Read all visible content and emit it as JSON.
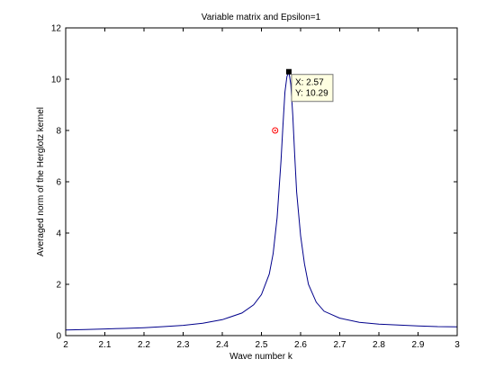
{
  "chart_data": {
    "type": "line",
    "title": "Variable matrix and Epsilon=1",
    "xlabel": "Wave number k",
    "ylabel": "Averaged norm of the Herglotz kernel",
    "xlim": [
      2,
      3
    ],
    "ylim": [
      0,
      12
    ],
    "xticks": [
      2,
      2.1,
      2.2,
      2.3,
      2.4,
      2.5,
      2.6,
      2.7,
      2.8,
      2.9,
      3
    ],
    "yticks": [
      0,
      2,
      4,
      6,
      8,
      10,
      12
    ],
    "xtick_labels": [
      "2",
      "2.1",
      "2.2",
      "2.3",
      "2.4",
      "2.5",
      "2.6",
      "2.7",
      "2.8",
      "2.9",
      "3"
    ],
    "ytick_labels": [
      "0",
      "2",
      "4",
      "6",
      "8",
      "10",
      "12"
    ],
    "grid": false,
    "series": [
      {
        "color": "#00008b",
        "x": [
          2.0,
          2.05,
          2.1,
          2.15,
          2.2,
          2.25,
          2.3,
          2.35,
          2.4,
          2.45,
          2.48,
          2.5,
          2.52,
          2.53,
          2.54,
          2.55,
          2.555,
          2.56,
          2.565,
          2.57,
          2.575,
          2.58,
          2.585,
          2.59,
          2.6,
          2.61,
          2.62,
          2.64,
          2.66,
          2.7,
          2.75,
          2.8,
          2.85,
          2.9,
          2.95,
          3.0
        ],
        "y": [
          0.22,
          0.24,
          0.26,
          0.28,
          0.31,
          0.35,
          0.4,
          0.48,
          0.62,
          0.88,
          1.2,
          1.6,
          2.4,
          3.2,
          4.6,
          6.8,
          8.2,
          9.5,
          10.1,
          10.29,
          9.8,
          8.6,
          7.0,
          5.6,
          3.9,
          2.8,
          2.0,
          1.3,
          0.95,
          0.68,
          0.52,
          0.45,
          0.41,
          0.38,
          0.35,
          0.34
        ]
      }
    ],
    "markers": [
      {
        "x": 2.57,
        "y": 10.29,
        "shape": "square",
        "color": "#000000"
      },
      {
        "x": 2.535,
        "y": 8.0,
        "shape": "circle-dot",
        "color": "#ff0000"
      }
    ],
    "datatip": {
      "x_text": "X: 2.57",
      "y_text": "Y: 10.29",
      "anchor_x": 2.57,
      "anchor_y": 10.29
    }
  }
}
